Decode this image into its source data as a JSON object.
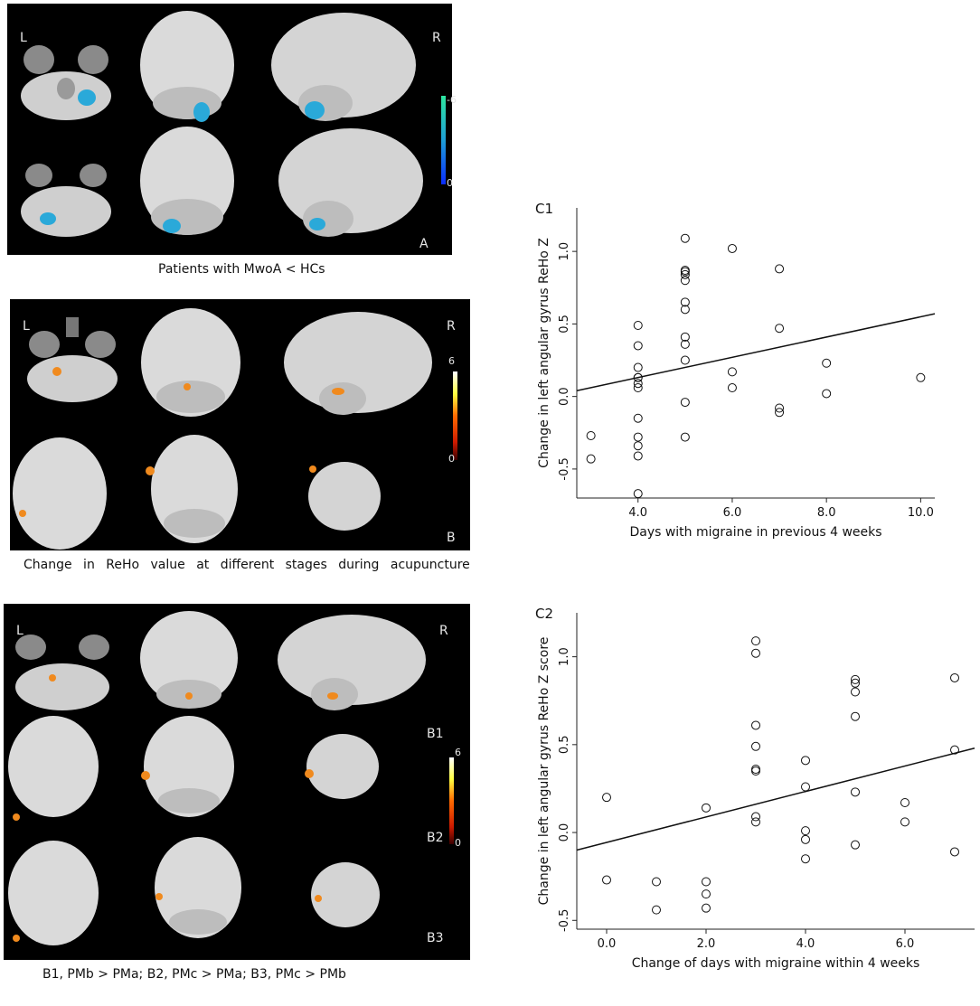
{
  "panel_a": {
    "left_label": "L",
    "right_label": "R",
    "panel_letter": "A",
    "colorbar_max": "-6",
    "colorbar_min": "0",
    "caption": "Patients with MwoA < HCs",
    "colorbar_colors": [
      "#2ee6a0",
      "#1e9fd6",
      "#0a2cff"
    ]
  },
  "panel_b": {
    "left_label": "L",
    "right_label": "R",
    "panel_letter": "B",
    "colorbar_max": "6",
    "colorbar_min": "0",
    "caption": "Change in ReHo value at different stages during acupuncture",
    "colorbar_colors": [
      "#ffffff",
      "#ffff40",
      "#ff6a00",
      "#cc1a00",
      "#3a0000"
    ]
  },
  "panel_b123": {
    "left_label": "L",
    "right_label": "R",
    "row_labels": [
      "B1",
      "B2",
      "B3"
    ],
    "colorbar_max": "6",
    "colorbar_min": "0",
    "caption": "B1, PMb > PMa; B2, PMc > PMa; B3, PMc > PMb"
  },
  "chart_data": [
    {
      "panel_label": "C1",
      "type": "scatter",
      "xlabel": "Days with migraine in previous 4 weeks",
      "ylabel": "Change in left angular gyrus ReHo Z",
      "xlim": [
        2.7,
        10.3
      ],
      "ylim": [
        -0.7,
        1.3
      ],
      "x_ticks": [
        4.0,
        6.0,
        8.0,
        10.0
      ],
      "x_tick_labels": [
        "4.0",
        "6.0",
        "8.0",
        "10.0"
      ],
      "y_ticks": [
        -0.5,
        0.0,
        0.5,
        1.0
      ],
      "y_tick_labels": [
        "-0.5",
        "0.0",
        "0.5",
        "1.0"
      ],
      "fit_line": [
        [
          2.7,
          0.04
        ],
        [
          10.3,
          0.57
        ]
      ],
      "x": [
        3,
        3,
        4,
        4,
        4,
        4,
        4,
        4,
        4,
        4,
        4,
        4,
        4,
        4,
        5,
        5,
        5,
        5,
        5,
        5,
        5,
        5,
        5,
        5,
        5,
        5,
        6,
        6,
        6,
        7,
        7,
        7,
        7,
        8,
        8,
        10
      ],
      "y": [
        -0.27,
        -0.43,
        0.49,
        0.35,
        0.2,
        0.13,
        0.09,
        0.06,
        -0.15,
        -0.28,
        -0.34,
        -0.41,
        -0.67,
        0.13,
        1.09,
        0.87,
        0.84,
        0.8,
        0.65,
        0.6,
        0.41,
        0.36,
        0.25,
        -0.04,
        -0.28,
        0.86,
        1.02,
        0.17,
        0.06,
        0.88,
        0.47,
        -0.08,
        -0.11,
        0.23,
        0.02,
        0.13
      ]
    },
    {
      "panel_label": "C2",
      "type": "scatter",
      "xlabel": "Change of days with migraine within 4 weeks",
      "ylabel": "Change in left angular gyrus ReHo Z score",
      "xlim": [
        -0.6,
        7.4
      ],
      "ylim": [
        -0.55,
        1.25
      ],
      "x_ticks": [
        0.0,
        2.0,
        4.0,
        6.0
      ],
      "x_tick_labels": [
        "0.0",
        "2.0",
        "4.0",
        "6.0"
      ],
      "y_ticks": [
        -0.5,
        0.0,
        0.5,
        1.0
      ],
      "y_tick_labels": [
        "-0.5",
        "0.0",
        "0.5",
        "1.0"
      ],
      "fit_line": [
        [
          -0.6,
          -0.1
        ],
        [
          7.4,
          0.48
        ]
      ],
      "x": [
        0,
        0,
        1,
        1,
        2,
        2,
        2,
        2,
        3,
        3,
        3,
        3,
        3,
        3,
        3,
        3,
        4,
        4,
        4,
        4,
        4,
        5,
        5,
        5,
        5,
        5,
        5,
        6,
        6,
        7,
        7,
        7
      ],
      "y": [
        0.2,
        -0.27,
        -0.28,
        -0.44,
        0.14,
        -0.28,
        -0.35,
        -0.43,
        1.09,
        1.02,
        0.61,
        0.49,
        0.36,
        0.35,
        0.09,
        0.06,
        0.41,
        0.26,
        0.01,
        -0.04,
        -0.15,
        0.87,
        0.85,
        0.8,
        0.66,
        0.23,
        -0.07,
        0.17,
        0.06,
        0.88,
        0.47,
        -0.11
      ]
    }
  ]
}
